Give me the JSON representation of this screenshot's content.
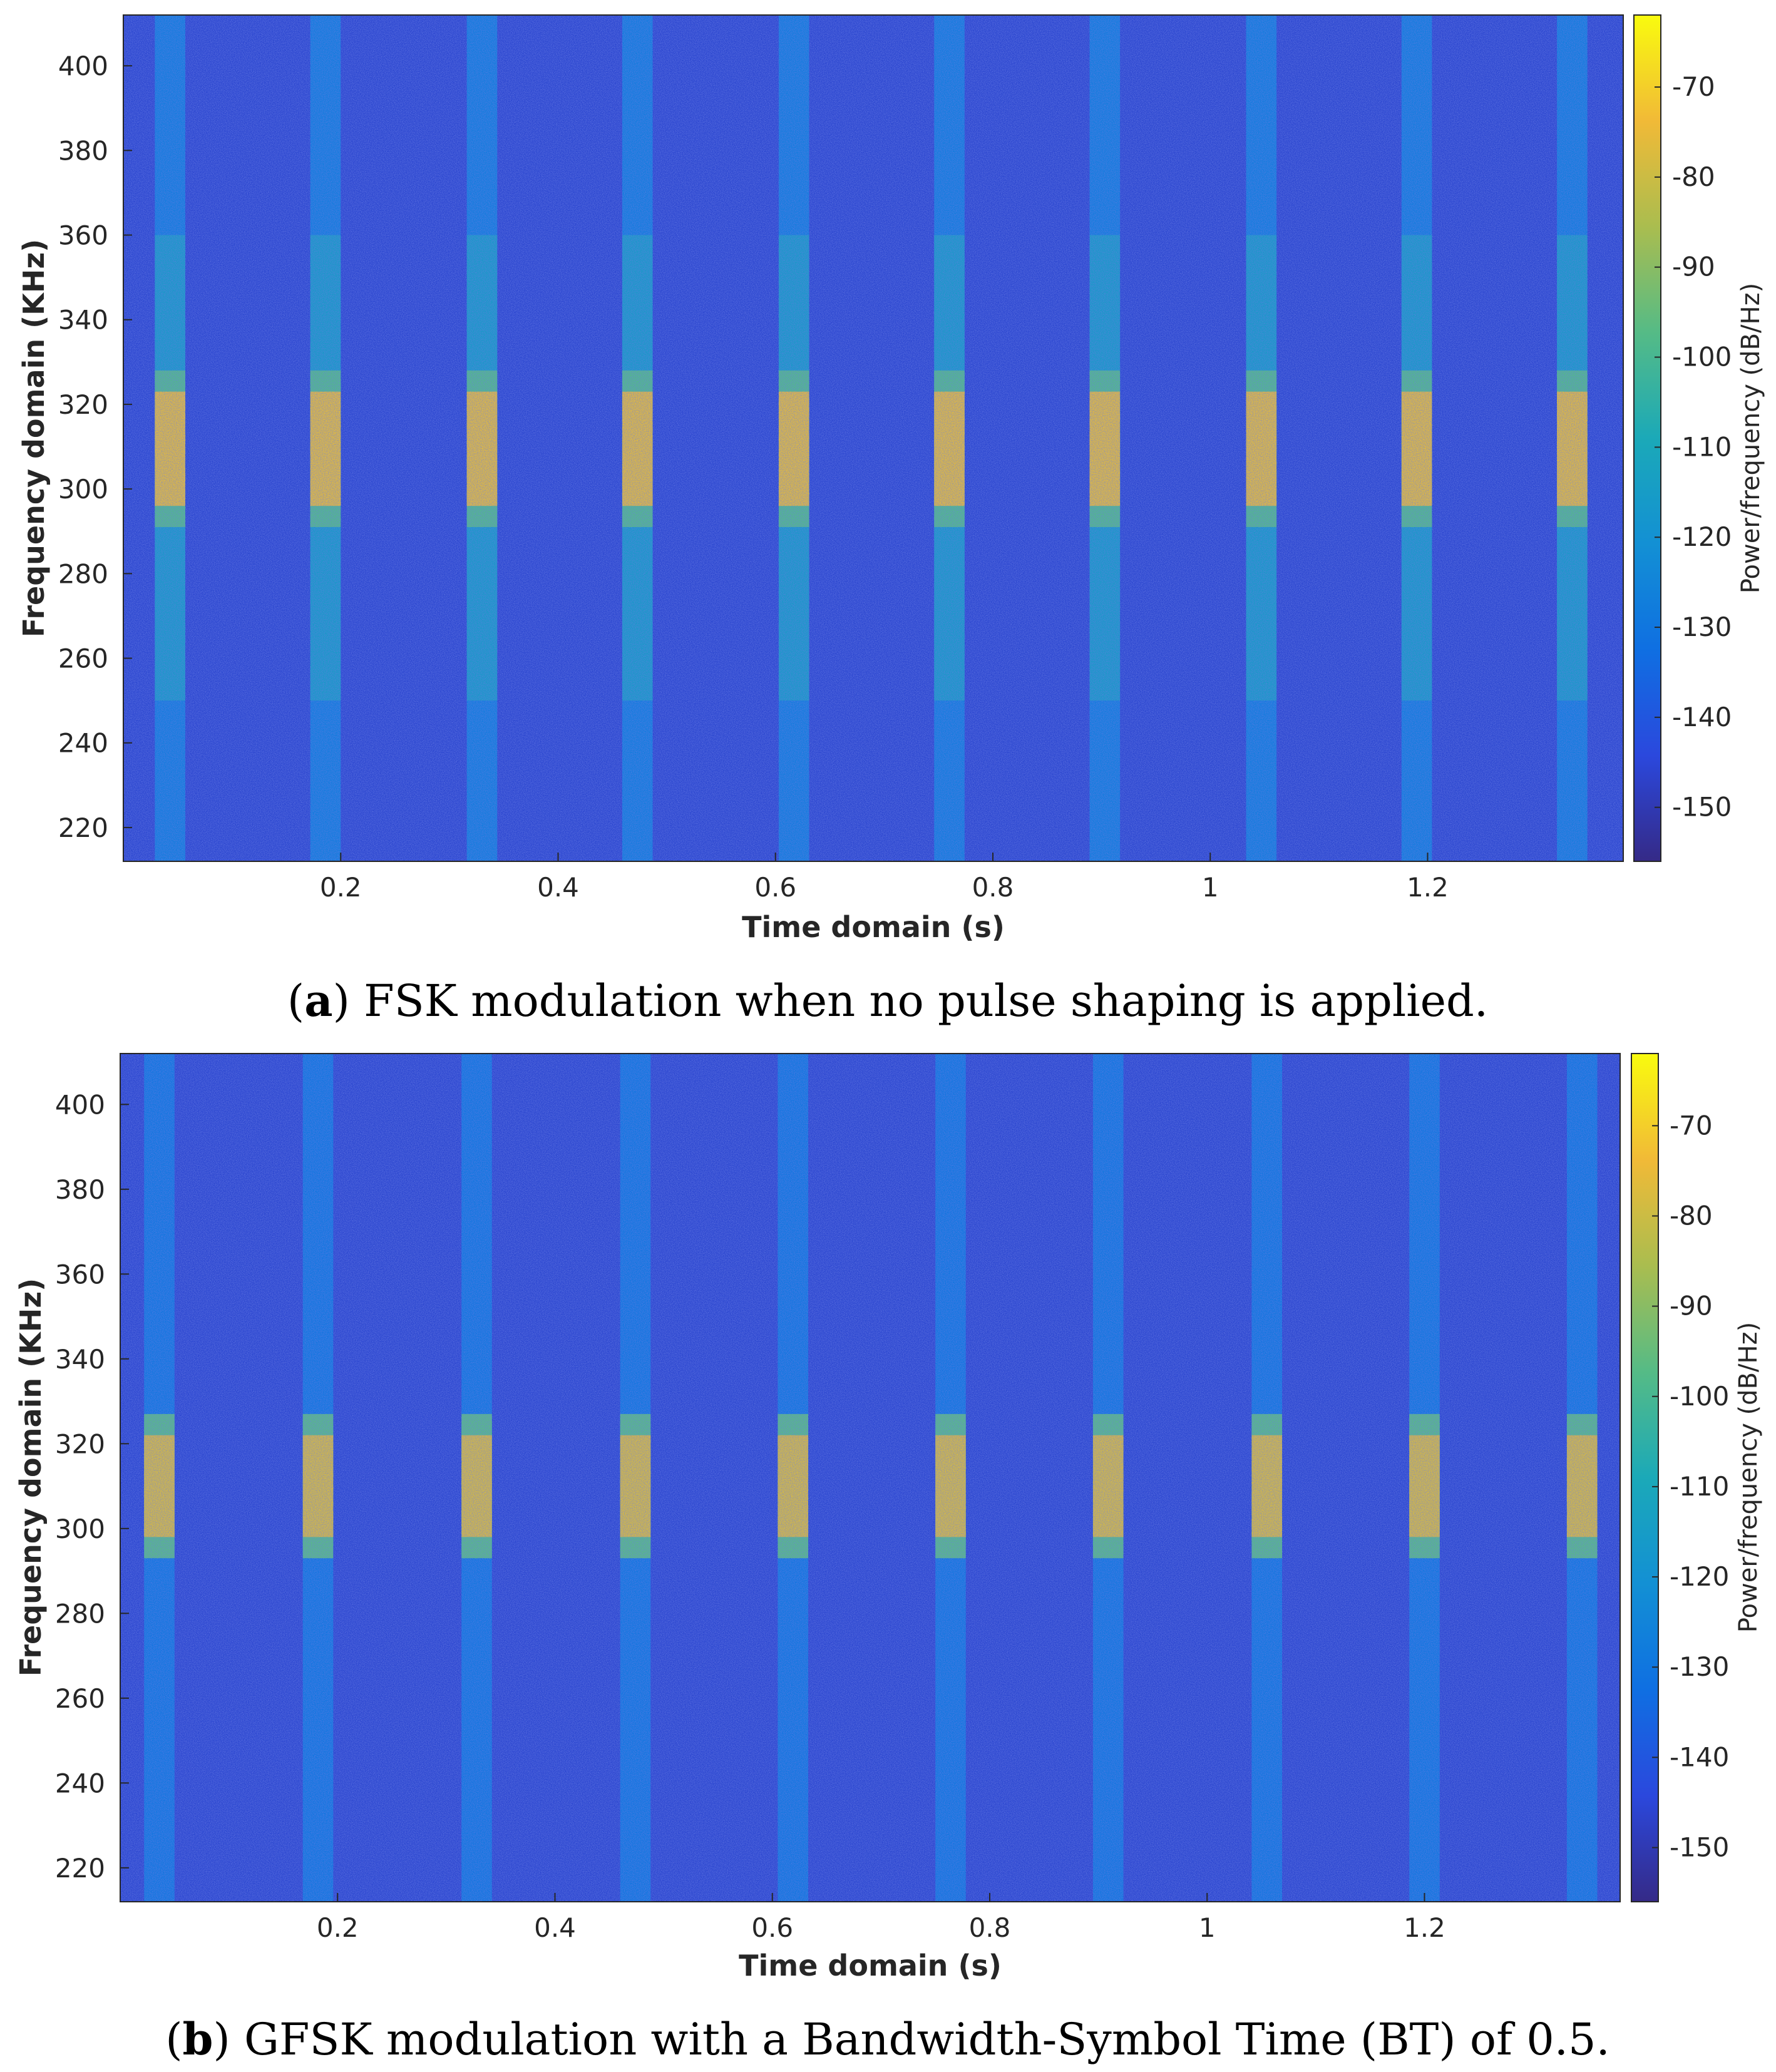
{
  "chart_data": [
    {
      "type": "heatmap",
      "panel": "a",
      "caption_label": "a",
      "caption_text": "FSK modulation when no pulse shaping is applied.",
      "xlabel": "Time domain (s)",
      "ylabel": "Frequency domain (KHz)",
      "colorbar_label": "Power/frequency (dB/Hz)",
      "xlim": [
        0,
        1.38
      ],
      "ylim": [
        212,
        412
      ],
      "xticks": [
        0.2,
        0.4,
        0.6,
        0.8,
        1,
        1.2
      ],
      "xtick_labels": [
        "0.2",
        "0.4",
        "0.6",
        "0.8",
        "1",
        "1.2"
      ],
      "yticks": [
        220,
        240,
        260,
        280,
        300,
        320,
        340,
        360,
        380,
        400
      ],
      "ytick_labels": [
        "220",
        "240",
        "260",
        "280",
        "300",
        "320",
        "340",
        "360",
        "380",
        "400"
      ],
      "clim": [
        -156,
        -62
      ],
      "cbar_ticks": [
        -70,
        -80,
        -90,
        -100,
        -110,
        -120,
        -130,
        -140,
        -150
      ],
      "cbar_tick_labels": [
        "-70",
        "-80",
        "-90",
        "-100",
        "-110",
        "-120",
        "-130",
        "-140",
        "-150"
      ],
      "noise_floor_db": -143,
      "burst_times": [
        0.043,
        0.186,
        0.33,
        0.473,
        0.617,
        0.76,
        0.903,
        1.047,
        1.19,
        1.333
      ],
      "burst_width_s": 0.028,
      "burst_band_khz": [
        296,
        323
      ],
      "burst_peak_db": -76,
      "sideband_db": -112,
      "sideband_range_khz": [
        250,
        360
      ],
      "stripe_db": -128
    },
    {
      "type": "heatmap",
      "panel": "b",
      "caption_label": "b",
      "caption_text": "GFSK modulation with a Bandwidth-Symbol Time (BT) of 0.5.",
      "xlabel": "Time domain (s)",
      "ylabel": "Frequency domain (KHz)",
      "colorbar_label": "Power/frequency (dB/Hz)",
      "xlim": [
        0,
        1.38
      ],
      "ylim": [
        212,
        412
      ],
      "xticks": [
        0.2,
        0.4,
        0.6,
        0.8,
        1,
        1.2
      ],
      "xtick_labels": [
        "0.2",
        "0.4",
        "0.6",
        "0.8",
        "1",
        "1.2"
      ],
      "yticks": [
        220,
        240,
        260,
        280,
        300,
        320,
        340,
        360,
        380,
        400
      ],
      "ytick_labels": [
        "220",
        "240",
        "260",
        "280",
        "300",
        "320",
        "340",
        "360",
        "380",
        "400"
      ],
      "clim": [
        -156,
        -62
      ],
      "cbar_ticks": [
        -70,
        -80,
        -90,
        -100,
        -110,
        -120,
        -130,
        -140,
        -150
      ],
      "cbar_tick_labels": [
        "-70",
        "-80",
        "-90",
        "-100",
        "-110",
        "-120",
        "-130",
        "-140",
        "-150"
      ],
      "noise_floor_db": -143,
      "burst_times": [
        0.036,
        0.182,
        0.328,
        0.474,
        0.619,
        0.764,
        0.909,
        1.055,
        1.2,
        1.345
      ],
      "burst_width_s": 0.028,
      "burst_band_khz": [
        298,
        322
      ],
      "burst_peak_db": -78,
      "sideband_db": -108,
      "sideband_range_khz": [
        296,
        325
      ],
      "stripe_db": -130
    }
  ]
}
